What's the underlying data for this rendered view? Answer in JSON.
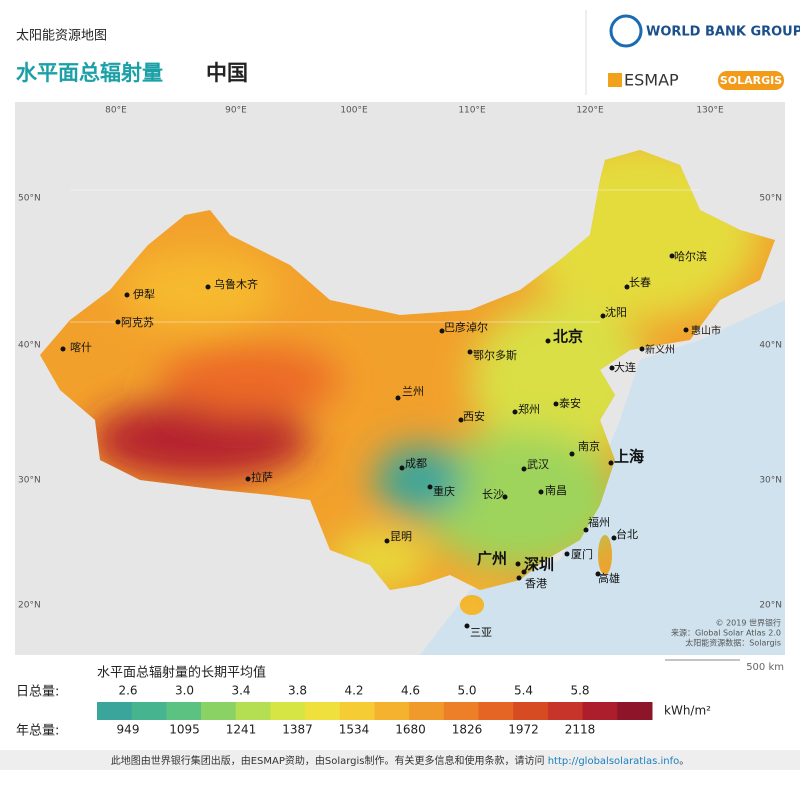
{
  "header": {
    "subtitle": "太阳能资源地图",
    "title": "水平面总辐射量",
    "country": "中国"
  },
  "logos": {
    "world_bank": "WORLD BANK GROUP",
    "esmap": "ESMAP",
    "solargis": "SOLARGIS"
  },
  "map": {
    "longitudes": [
      "80°E",
      "90°E",
      "100°E",
      "110°E",
      "120°E",
      "130°E"
    ],
    "latitudes": [
      "50°N",
      "40°N",
      "30°N",
      "20°N"
    ],
    "cities": [
      "伊犁",
      "乌鲁木齐",
      "阿克苏",
      "喀什",
      "拉萨",
      "兰州",
      "巴彦淖尔",
      "鄂尔多斯",
      "北京",
      "西安",
      "郑州",
      "泰安",
      "成都",
      "重庆",
      "武汉",
      "南京",
      "上海",
      "长沙",
      "南昌",
      "昆明",
      "福州",
      "台北",
      "厦门",
      "广州",
      "深圳",
      "香港",
      "高雄",
      "三亚",
      "哈尔滨",
      "长春",
      "沈阳",
      "大连",
      "新义州",
      "惠山市"
    ],
    "credits": [
      "© 2019 世界银行",
      "来源：Global Solar Atlas 2.0",
      "太阳能资源数据：Solargis"
    ],
    "scale": "500 km"
  },
  "legend": {
    "title": "水平面总辐射量的长期平均值",
    "daily_label": "日总量:",
    "daily": [
      "2.6",
      "3.0",
      "3.4",
      "3.8",
      "4.2",
      "4.6",
      "5.0",
      "5.4",
      "5.8"
    ],
    "annual_label": "年总量:",
    "annual": [
      "949",
      "1095",
      "1241",
      "1387",
      "1534",
      "1680",
      "1826",
      "1972",
      "2118"
    ],
    "unit": "kWh/m²"
  },
  "footer": {
    "text": "此地图由世界银行集团出版，由ESMAP资助，由Solargis制作。有关更多信息和使用条款，请访问 ",
    "link": "http://globalsolaratlas.info",
    "end": "。"
  }
}
